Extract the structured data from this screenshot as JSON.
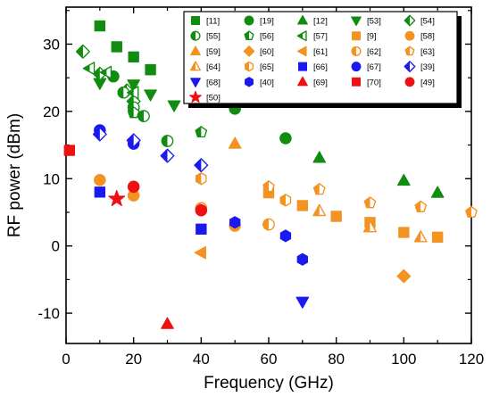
{
  "chart_data": {
    "type": "scatter",
    "xlabel": "Frequency (GHz)",
    "ylabel": "RF power (dBm)",
    "xlim": [
      0,
      120
    ],
    "ylim": [
      -14.5,
      35.5
    ],
    "xticks": [
      0,
      20,
      40,
      60,
      80,
      100,
      120
    ],
    "yticks": [
      -10,
      0,
      10,
      20,
      30
    ],
    "grid": false,
    "legend_position": "top-right",
    "legend_columns": 5,
    "colors": {
      "green": "#118c11",
      "orange": "#f29322",
      "blue": "#1a1af0",
      "red": "#ee1111"
    },
    "series": [
      {
        "name": "[11]",
        "color": "green",
        "marker": "square",
        "points": [
          [
            10,
            32.7
          ],
          [
            15,
            29.6
          ],
          [
            20,
            28.1
          ],
          [
            25,
            26.2
          ]
        ]
      },
      {
        "name": "[19]",
        "color": "green",
        "marker": "circle",
        "points": [
          [
            14,
            25.2
          ],
          [
            50,
            20.4
          ],
          [
            65,
            16.0
          ]
        ]
      },
      {
        "name": "[12]",
        "color": "green",
        "marker": "triangle-up",
        "points": [
          [
            75,
            13.1
          ],
          [
            100,
            9.7
          ],
          [
            110,
            7.9
          ]
        ]
      },
      {
        "name": "[53]",
        "color": "green",
        "marker": "triangle-down",
        "points": [
          [
            10,
            24.2
          ],
          [
            20,
            24.0
          ],
          [
            25,
            22.5
          ],
          [
            32,
            20.9
          ]
        ]
      },
      {
        "name": "[54]",
        "color": "green",
        "marker": "diamond-half",
        "points": [
          [
            5,
            28.9
          ],
          [
            10,
            25.6
          ],
          [
            18,
            23.1
          ],
          [
            20,
            21.5
          ]
        ]
      },
      {
        "name": "[55]",
        "color": "green",
        "marker": "circle-half",
        "points": [
          [
            17,
            22.8
          ],
          [
            20,
            20.6
          ],
          [
            23,
            19.3
          ],
          [
            30,
            15.6
          ]
        ]
      },
      {
        "name": "[56]",
        "color": "green",
        "marker": "pentagon-half",
        "points": [
          [
            20,
            19.8
          ],
          [
            40,
            16.9
          ]
        ]
      },
      {
        "name": "[57]",
        "color": "green",
        "marker": "triangle-left-half",
        "points": [
          [
            7,
            26.4
          ],
          [
            12,
            25.8
          ],
          [
            20,
            22.8
          ]
        ]
      },
      {
        "name": "[9]",
        "color": "orange",
        "marker": "square",
        "points": [
          [
            60,
            7.9
          ],
          [
            70,
            6.0
          ],
          [
            80,
            4.4
          ],
          [
            90,
            3.5
          ],
          [
            100,
            2.0
          ],
          [
            110,
            1.3
          ]
        ]
      },
      {
        "name": "[58]",
        "color": "orange",
        "marker": "circle",
        "points": [
          [
            10,
            9.8
          ],
          [
            20,
            7.5
          ],
          [
            50,
            3.0
          ]
        ]
      },
      {
        "name": "[59]",
        "color": "orange",
        "marker": "triangle-up",
        "points": [
          [
            50,
            15.2
          ]
        ]
      },
      {
        "name": "[60]",
        "color": "orange",
        "marker": "diamond",
        "points": [
          [
            100,
            -4.5
          ]
        ]
      },
      {
        "name": "[61]",
        "color": "orange",
        "marker": "triangle-left",
        "points": [
          [
            40,
            -1.0
          ]
        ]
      },
      {
        "name": "[62]",
        "color": "orange",
        "marker": "circle-half",
        "points": [
          [
            40,
            5.6
          ],
          [
            60,
            3.2
          ]
        ]
      },
      {
        "name": "[63]",
        "color": "orange",
        "marker": "pentagon-half",
        "points": [
          [
            60,
            8.8
          ],
          [
            75,
            8.4
          ],
          [
            90,
            6.4
          ],
          [
            105,
            5.8
          ],
          [
            120,
            5.0
          ]
        ]
      },
      {
        "name": "[64]",
        "color": "orange",
        "marker": "triangle-up-half",
        "points": [
          [
            75,
            5.2
          ],
          [
            90,
            2.8
          ],
          [
            105,
            1.3
          ]
        ]
      },
      {
        "name": "[65]",
        "color": "orange",
        "marker": "hexagon-half",
        "points": [
          [
            40,
            10.0
          ],
          [
            65,
            6.8
          ]
        ]
      },
      {
        "name": "[66]",
        "color": "blue",
        "marker": "square",
        "points": [
          [
            10,
            8.0
          ],
          [
            40,
            2.5
          ]
        ]
      },
      {
        "name": "[67]",
        "color": "blue",
        "marker": "circle",
        "points": [
          [
            10,
            17.2
          ],
          [
            20,
            15.2
          ]
        ]
      },
      {
        "name": "[39]",
        "color": "blue",
        "marker": "diamond-half",
        "points": [
          [
            10,
            16.6
          ],
          [
            20,
            15.7
          ],
          [
            30,
            13.4
          ],
          [
            40,
            12.0
          ]
        ]
      },
      {
        "name": "[68]",
        "color": "blue",
        "marker": "triangle-down",
        "points": [
          [
            70,
            -8.3
          ]
        ]
      },
      {
        "name": "[40]",
        "color": "blue",
        "marker": "hexagon",
        "points": [
          [
            50,
            3.5
          ],
          [
            65,
            1.5
          ],
          [
            70,
            -2.0
          ]
        ]
      },
      {
        "name": "[69]",
        "color": "red",
        "marker": "triangle-up",
        "points": [
          [
            30,
            -11.6
          ]
        ]
      },
      {
        "name": "[70]",
        "color": "red",
        "marker": "square",
        "points": [
          [
            1,
            14.2
          ]
        ]
      },
      {
        "name": "[49]",
        "color": "red",
        "marker": "circle",
        "points": [
          [
            20,
            8.8
          ],
          [
            40,
            5.3
          ]
        ]
      },
      {
        "name": "[50]",
        "color": "red",
        "marker": "star",
        "points": [
          [
            15,
            7.0
          ]
        ]
      }
    ]
  }
}
